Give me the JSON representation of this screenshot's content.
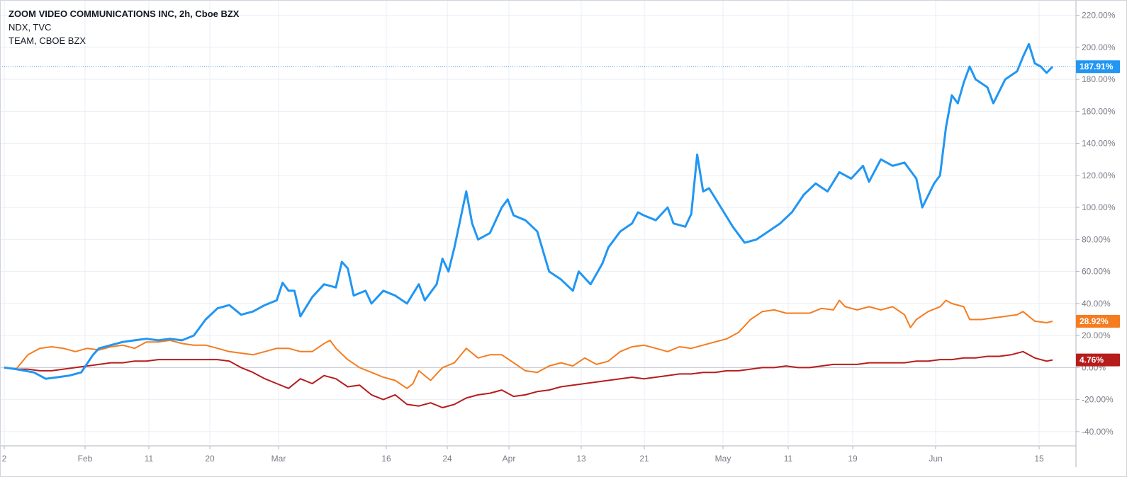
{
  "legend": {
    "line1": "ZOOM VIDEO COMMUNICATIONS INC, 2h, Cboe BZX",
    "line2": "NDX, TVC",
    "line3": "TEAM, CBOE BZX"
  },
  "colors": {
    "zm": "#2196f3",
    "team": "#f57c1f",
    "ndx": "#b71c1c",
    "grid": "#e9eef5",
    "axis_text": "#787b86"
  },
  "chart_data": {
    "type": "line",
    "title": "ZOOM VIDEO COMMUNICATIONS INC, 2h, Cboe BZX",
    "xlabel": "",
    "ylabel": "",
    "ylim": [
      -48,
      226
    ],
    "y_ticks": [
      "220.00%",
      "200.00%",
      "180.00%",
      "160.00%",
      "140.00%",
      "120.00%",
      "100.00%",
      "80.00%",
      "60.00%",
      "40.00%",
      "20.00%",
      "0.00%",
      "-20.00%",
      "-40.00%"
    ],
    "x_ticks": [
      "2",
      "Feb",
      "11",
      "20",
      "Mar",
      "16",
      "24",
      "Apr",
      "13",
      "21",
      "May",
      "11",
      "19",
      "Jun",
      "15"
    ],
    "grid": true,
    "series": [
      {
        "name": "ZOOM VIDEO COMMUNICATIONS INC",
        "last_label": "187.91%",
        "values": [
          [
            0,
            0
          ],
          [
            2,
            -1
          ],
          [
            5,
            -3
          ],
          [
            7,
            -7
          ],
          [
            9,
            -6
          ],
          [
            11,
            -5
          ],
          [
            13,
            -3
          ],
          [
            15,
            8
          ],
          [
            16,
            12
          ],
          [
            18,
            14
          ],
          [
            20,
            16
          ],
          [
            22,
            17
          ],
          [
            24,
            18
          ],
          [
            26,
            17
          ],
          [
            28,
            18
          ],
          [
            30,
            17
          ],
          [
            32,
            20
          ],
          [
            34,
            30
          ],
          [
            36,
            37
          ],
          [
            38,
            39
          ],
          [
            40,
            33
          ],
          [
            42,
            35
          ],
          [
            44,
            39
          ],
          [
            46,
            42
          ],
          [
            47,
            53
          ],
          [
            48,
            48
          ],
          [
            49,
            48
          ],
          [
            50,
            32
          ],
          [
            52,
            44
          ],
          [
            54,
            52
          ],
          [
            56,
            50
          ],
          [
            57,
            66
          ],
          [
            58,
            62
          ],
          [
            59,
            45
          ],
          [
            61,
            48
          ],
          [
            62,
            40
          ],
          [
            64,
            48
          ],
          [
            66,
            45
          ],
          [
            68,
            40
          ],
          [
            70,
            52
          ],
          [
            71,
            42
          ],
          [
            73,
            52
          ],
          [
            74,
            68
          ],
          [
            75,
            60
          ],
          [
            76,
            75
          ],
          [
            78,
            110
          ],
          [
            79,
            90
          ],
          [
            80,
            80
          ],
          [
            82,
            84
          ],
          [
            84,
            100
          ],
          [
            85,
            105
          ],
          [
            86,
            95
          ],
          [
            88,
            92
          ],
          [
            90,
            85
          ],
          [
            92,
            60
          ],
          [
            94,
            55
          ],
          [
            96,
            48
          ],
          [
            97,
            60
          ],
          [
            99,
            52
          ],
          [
            101,
            65
          ],
          [
            102,
            75
          ],
          [
            104,
            85
          ],
          [
            106,
            90
          ],
          [
            107,
            97
          ],
          [
            108,
            95
          ],
          [
            110,
            92
          ],
          [
            112,
            100
          ],
          [
            113,
            90
          ],
          [
            115,
            88
          ],
          [
            116,
            96
          ],
          [
            117,
            133
          ],
          [
            118,
            110
          ],
          [
            119,
            112
          ],
          [
            121,
            100
          ],
          [
            123,
            88
          ],
          [
            125,
            78
          ],
          [
            127,
            80
          ],
          [
            129,
            85
          ],
          [
            131,
            90
          ],
          [
            133,
            97
          ],
          [
            135,
            108
          ],
          [
            137,
            115
          ],
          [
            139,
            110
          ],
          [
            141,
            122
          ],
          [
            143,
            118
          ],
          [
            145,
            126
          ],
          [
            146,
            116
          ],
          [
            148,
            130
          ],
          [
            150,
            126
          ],
          [
            152,
            128
          ],
          [
            154,
            118
          ],
          [
            155,
            100
          ],
          [
            157,
            115
          ],
          [
            158,
            120
          ],
          [
            159,
            150
          ],
          [
            160,
            170
          ],
          [
            161,
            165
          ],
          [
            162,
            178
          ],
          [
            163,
            188
          ],
          [
            164,
            180
          ],
          [
            166,
            175
          ],
          [
            167,
            165
          ],
          [
            169,
            180
          ],
          [
            171,
            185
          ],
          [
            172,
            194
          ],
          [
            173,
            202
          ],
          [
            174,
            190
          ],
          [
            175,
            188
          ],
          [
            176,
            184
          ],
          [
            177,
            187.91
          ]
        ]
      },
      {
        "name": "TEAM, CBOE BZX",
        "last_label": "28.92%",
        "values": [
          [
            0,
            0
          ],
          [
            2,
            -1
          ],
          [
            4,
            8
          ],
          [
            6,
            12
          ],
          [
            8,
            13
          ],
          [
            10,
            12
          ],
          [
            12,
            10
          ],
          [
            14,
            12
          ],
          [
            16,
            11
          ],
          [
            18,
            13
          ],
          [
            20,
            14
          ],
          [
            22,
            12
          ],
          [
            24,
            16
          ],
          [
            26,
            16
          ],
          [
            28,
            17
          ],
          [
            30,
            15
          ],
          [
            32,
            14
          ],
          [
            34,
            14
          ],
          [
            36,
            12
          ],
          [
            38,
            10
          ],
          [
            40,
            9
          ],
          [
            42,
            8
          ],
          [
            44,
            10
          ],
          [
            46,
            12
          ],
          [
            48,
            12
          ],
          [
            50,
            10
          ],
          [
            52,
            10
          ],
          [
            54,
            15
          ],
          [
            55,
            17
          ],
          [
            56,
            12
          ],
          [
            58,
            5
          ],
          [
            60,
            0
          ],
          [
            62,
            -3
          ],
          [
            64,
            -6
          ],
          [
            66,
            -8
          ],
          [
            68,
            -13
          ],
          [
            69,
            -10
          ],
          [
            70,
            -2
          ],
          [
            72,
            -8
          ],
          [
            74,
            0
          ],
          [
            76,
            3
          ],
          [
            78,
            12
          ],
          [
            80,
            6
          ],
          [
            82,
            8
          ],
          [
            84,
            8
          ],
          [
            86,
            3
          ],
          [
            88,
            -2
          ],
          [
            90,
            -3
          ],
          [
            92,
            1
          ],
          [
            94,
            3
          ],
          [
            96,
            1
          ],
          [
            98,
            6
          ],
          [
            100,
            2
          ],
          [
            102,
            4
          ],
          [
            104,
            10
          ],
          [
            106,
            13
          ],
          [
            108,
            14
          ],
          [
            110,
            12
          ],
          [
            112,
            10
          ],
          [
            114,
            13
          ],
          [
            116,
            12
          ],
          [
            118,
            14
          ],
          [
            120,
            16
          ],
          [
            122,
            18
          ],
          [
            124,
            22
          ],
          [
            126,
            30
          ],
          [
            128,
            35
          ],
          [
            130,
            36
          ],
          [
            132,
            34
          ],
          [
            134,
            34
          ],
          [
            136,
            34
          ],
          [
            138,
            37
          ],
          [
            140,
            36
          ],
          [
            141,
            42
          ],
          [
            142,
            38
          ],
          [
            144,
            36
          ],
          [
            146,
            38
          ],
          [
            148,
            36
          ],
          [
            150,
            38
          ],
          [
            152,
            33
          ],
          [
            153,
            25
          ],
          [
            154,
            30
          ],
          [
            156,
            35
          ],
          [
            158,
            38
          ],
          [
            159,
            42
          ],
          [
            160,
            40
          ],
          [
            162,
            38
          ],
          [
            163,
            30
          ],
          [
            165,
            30
          ],
          [
            167,
            31
          ],
          [
            169,
            32
          ],
          [
            171,
            33
          ],
          [
            172,
            35
          ],
          [
            174,
            29
          ],
          [
            176,
            28
          ],
          [
            177,
            28.92
          ]
        ]
      },
      {
        "name": "NDX, TVC",
        "last_label": "4.76%",
        "values": [
          [
            0,
            0
          ],
          [
            2,
            -1
          ],
          [
            4,
            -1
          ],
          [
            6,
            -2
          ],
          [
            8,
            -2
          ],
          [
            10,
            -1
          ],
          [
            12,
            0
          ],
          [
            14,
            1
          ],
          [
            16,
            2
          ],
          [
            18,
            3
          ],
          [
            20,
            3
          ],
          [
            22,
            4
          ],
          [
            24,
            4
          ],
          [
            26,
            5
          ],
          [
            28,
            5
          ],
          [
            30,
            5
          ],
          [
            32,
            5
          ],
          [
            34,
            5
          ],
          [
            36,
            5
          ],
          [
            38,
            4
          ],
          [
            40,
            0
          ],
          [
            42,
            -3
          ],
          [
            44,
            -7
          ],
          [
            46,
            -10
          ],
          [
            48,
            -13
          ],
          [
            50,
            -7
          ],
          [
            52,
            -10
          ],
          [
            54,
            -5
          ],
          [
            56,
            -7
          ],
          [
            58,
            -12
          ],
          [
            60,
            -11
          ],
          [
            62,
            -17
          ],
          [
            64,
            -20
          ],
          [
            66,
            -17
          ],
          [
            68,
            -23
          ],
          [
            70,
            -24
          ],
          [
            72,
            -22
          ],
          [
            74,
            -25
          ],
          [
            76,
            -23
          ],
          [
            78,
            -19
          ],
          [
            80,
            -17
          ],
          [
            82,
            -16
          ],
          [
            84,
            -14
          ],
          [
            86,
            -18
          ],
          [
            88,
            -17
          ],
          [
            90,
            -15
          ],
          [
            92,
            -14
          ],
          [
            94,
            -12
          ],
          [
            96,
            -11
          ],
          [
            98,
            -10
          ],
          [
            100,
            -9
          ],
          [
            102,
            -8
          ],
          [
            104,
            -7
          ],
          [
            106,
            -6
          ],
          [
            108,
            -7
          ],
          [
            110,
            -6
          ],
          [
            112,
            -5
          ],
          [
            114,
            -4
          ],
          [
            116,
            -4
          ],
          [
            118,
            -3
          ],
          [
            120,
            -3
          ],
          [
            122,
            -2
          ],
          [
            124,
            -2
          ],
          [
            126,
            -1
          ],
          [
            128,
            0
          ],
          [
            130,
            0
          ],
          [
            132,
            1
          ],
          [
            134,
            0
          ],
          [
            136,
            0
          ],
          [
            138,
            1
          ],
          [
            140,
            2
          ],
          [
            142,
            2
          ],
          [
            144,
            2
          ],
          [
            146,
            3
          ],
          [
            148,
            3
          ],
          [
            150,
            3
          ],
          [
            152,
            3
          ],
          [
            154,
            4
          ],
          [
            156,
            4
          ],
          [
            158,
            5
          ],
          [
            160,
            5
          ],
          [
            162,
            6
          ],
          [
            164,
            6
          ],
          [
            166,
            7
          ],
          [
            168,
            7
          ],
          [
            170,
            8
          ],
          [
            172,
            10
          ],
          [
            174,
            6
          ],
          [
            176,
            4
          ],
          [
            177,
            4.76
          ]
        ]
      }
    ]
  }
}
